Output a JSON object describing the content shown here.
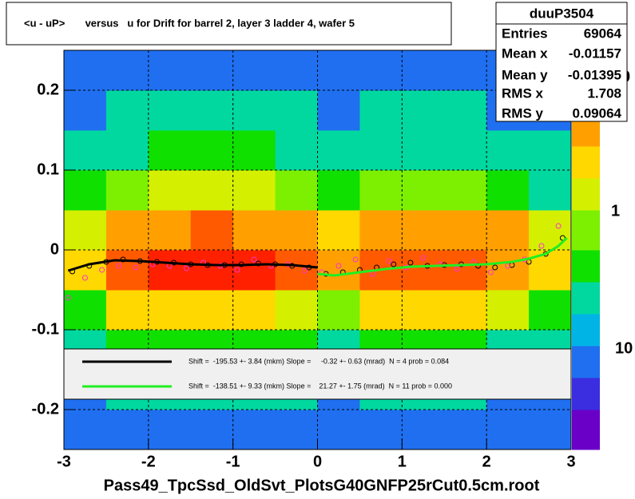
{
  "chart_data": {
    "type": "heatmap",
    "title": "<u - uP>       versus   u for Drift for barrel 2, layer 3 ladder 4, wafer 5",
    "x_label": "Pass49_TpcSsd_OldSvt_PlotsG40GNFP25rCut0.5cm.root",
    "xlim": [
      -3,
      3
    ],
    "ylim": [
      -0.25,
      0.25
    ],
    "xticks": [
      -3,
      -2,
      -1,
      0,
      1,
      2,
      3
    ],
    "yticks": [
      -0.2,
      -0.1,
      0,
      0.1,
      0.2
    ],
    "grid": true,
    "xedges": [
      -3,
      -2.5,
      -2,
      -1.5,
      -1,
      -0.5,
      0,
      0.5,
      1,
      1.5,
      2,
      2.5,
      3
    ],
    "yedges": [
      -0.25,
      -0.2,
      -0.15,
      -0.1,
      -0.05,
      0,
      0.05,
      0.1,
      0.15,
      0.2,
      0.25
    ],
    "z": [
      [
        1,
        1,
        1,
        1,
        1,
        1,
        1,
        1,
        1,
        1,
        1,
        1
      ],
      [
        1,
        2,
        2,
        2,
        2,
        2,
        1,
        2,
        2,
        2,
        1,
        1
      ],
      [
        2,
        3,
        3,
        3,
        3,
        3,
        2,
        3,
        3,
        3,
        2,
        2
      ],
      [
        3,
        6,
        6,
        7,
        6,
        5,
        4,
        6,
        6,
        6,
        5,
        3
      ],
      [
        6,
        14,
        15,
        16,
        15,
        12,
        8,
        14,
        14,
        13,
        10,
        6
      ],
      [
        5,
        9,
        10,
        11,
        10,
        9,
        6,
        10,
        10,
        9,
        8,
        5
      ],
      [
        3,
        4,
        5,
        5,
        5,
        4,
        3,
        4,
        4,
        4,
        3,
        2
      ],
      [
        2,
        2,
        3,
        3,
        3,
        2,
        2,
        2,
        2,
        2,
        2,
        2
      ],
      [
        1,
        2,
        2,
        2,
        2,
        2,
        1,
        2,
        2,
        2,
        1,
        1
      ],
      [
        1,
        1,
        1,
        1,
        1,
        1,
        1,
        1,
        1,
        1,
        1,
        1
      ]
    ],
    "zlim": [
      0.5,
      20
    ],
    "zlog": true,
    "palette": [
      "#6a00c8",
      "#3a2ee0",
      "#1f6ff0",
      "#00b4e6",
      "#00d8a0",
      "#10e000",
      "#7cf000",
      "#d4f000",
      "#ffd800",
      "#ffa000",
      "#ff5a00",
      "#ff2000"
    ],
    "color_axis_labels": [
      "0",
      "1",
      "10"
    ],
    "series": [
      {
        "style": "markers",
        "color": "#000000",
        "x": [
          -2.9,
          -2.7,
          -2.5,
          -2.3,
          -2.1,
          -1.9,
          -1.7,
          -1.5,
          -1.3,
          -1.1,
          -0.9,
          -0.7,
          -0.5,
          -0.3,
          -0.1,
          0.1,
          0.3,
          0.5,
          0.7,
          0.9,
          1.1,
          1.3,
          1.5,
          1.7,
          1.9,
          2.1,
          2.3,
          2.5,
          2.7,
          2.9
        ],
        "values": [
          -0.027,
          -0.02,
          -0.015,
          -0.012,
          -0.014,
          -0.015,
          -0.016,
          -0.018,
          -0.019,
          -0.019,
          -0.018,
          -0.017,
          -0.018,
          -0.02,
          -0.022,
          -0.03,
          -0.028,
          -0.025,
          -0.022,
          -0.018,
          -0.016,
          -0.02,
          -0.019,
          -0.018,
          -0.02,
          -0.022,
          -0.019,
          -0.015,
          -0.005,
          0.015
        ]
      },
      {
        "style": "markers",
        "color": "#ff33cc",
        "x": [
          -2.95,
          -2.75,
          -2.55,
          -2.35,
          -2.15,
          -1.95,
          -1.75,
          -1.55,
          -1.35,
          -1.15,
          -0.95,
          -0.75,
          -0.55,
          -0.35,
          -0.15,
          0.05,
          0.25,
          0.45,
          0.65,
          0.85,
          1.05,
          1.25,
          1.45,
          1.65,
          1.85,
          2.05,
          2.25,
          2.45,
          2.65,
          2.85
        ],
        "values": [
          -0.06,
          -0.035,
          -0.025,
          -0.02,
          -0.022,
          -0.018,
          -0.02,
          -0.023,
          -0.016,
          -0.02,
          -0.025,
          -0.012,
          -0.02,
          -0.018,
          -0.026,
          -0.028,
          -0.02,
          -0.012,
          -0.03,
          -0.014,
          -0.022,
          -0.01,
          -0.018,
          -0.024,
          -0.015,
          -0.028,
          -0.02,
          -0.012,
          0.005,
          0.03
        ]
      },
      {
        "name": "Shift =  -195.53 +- 3.84 (mkm) Slope =     -0.32 +- 0.63 (mrad)  N = 4 prob = 0.084",
        "style": "line",
        "color": "#000000",
        "x": [
          -2.95,
          -2.7,
          -2.4,
          -2.1,
          -1.8,
          -1.5,
          -1.2,
          -0.9,
          -0.6,
          -0.3,
          0
        ],
        "values": [
          -0.026,
          -0.018,
          -0.013,
          -0.014,
          -0.016,
          -0.018,
          -0.019,
          -0.019,
          -0.018,
          -0.019,
          -0.022
        ]
      },
      {
        "name": "Shift =  -138.51 +- 9.33 (mkm) Slope =    21.27 +- 1.75 (mrad)  N = 11 prob = 0.000",
        "style": "line",
        "color": "#22ee22",
        "x": [
          0,
          0.2,
          0.5,
          0.8,
          1.1,
          1.4,
          1.7,
          2,
          2.3,
          2.5,
          2.7,
          2.85,
          2.95
        ],
        "values": [
          -0.03,
          -0.032,
          -0.028,
          -0.024,
          -0.021,
          -0.02,
          -0.019,
          -0.018,
          -0.015,
          -0.011,
          -0.005,
          0.005,
          0.015
        ]
      }
    ],
    "stats": {
      "name": "duuP3504",
      "rows": [
        [
          "Entries",
          "69064"
        ],
        [
          "Mean x",
          "-0.01157"
        ],
        [
          "Mean y",
          "-0.01395"
        ],
        [
          "RMS x",
          "1.708"
        ],
        [
          "RMS y",
          "0.09064"
        ]
      ]
    }
  }
}
